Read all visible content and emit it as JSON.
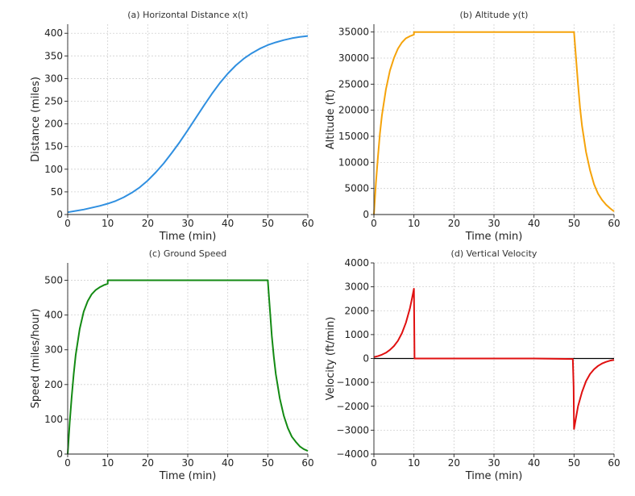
{
  "figure": {
    "background": "#ffffff"
  },
  "chart_data": [
    {
      "id": "a",
      "type": "line",
      "title": "(a) Horizontal Distance x(t)",
      "xlabel": "Time (min)",
      "ylabel": "Distance (miles)",
      "xlim": [
        0,
        60
      ],
      "ylim": [
        0,
        420
      ],
      "xticks": [
        0,
        10,
        20,
        30,
        40,
        50,
        60
      ],
      "yticks": [
        0,
        50,
        100,
        150,
        200,
        250,
        300,
        350,
        400
      ],
      "grid": true,
      "zero_line": false,
      "series": [
        {
          "color": "#2f8fe0",
          "x": [
            0,
            2,
            4,
            6,
            8,
            10,
            12,
            14,
            16,
            18,
            20,
            22,
            24,
            26,
            28,
            30,
            32,
            34,
            36,
            38,
            40,
            42,
            44,
            46,
            48,
            50,
            52,
            54,
            56,
            58,
            60
          ],
          "y": [
            5,
            8,
            11,
            15,
            19,
            24,
            30,
            38,
            48,
            60,
            75,
            93,
            113,
            136,
            160,
            186,
            213,
            240,
            266,
            290,
            311,
            329,
            344,
            356,
            366,
            374,
            380,
            385,
            389,
            392,
            394
          ]
        }
      ]
    },
    {
      "id": "b",
      "type": "line",
      "title": "(b) Altitude y(t)",
      "xlabel": "Time (min)",
      "ylabel": "Altitude (ft)",
      "xlim": [
        0,
        60
      ],
      "ylim": [
        0,
        36500
      ],
      "xticks": [
        0,
        10,
        20,
        30,
        40,
        50,
        60
      ],
      "yticks": [
        0,
        5000,
        10000,
        15000,
        20000,
        25000,
        30000,
        35000
      ],
      "grid": true,
      "zero_line": false,
      "series": [
        {
          "color": "#f5a30a",
          "x": [
            0,
            0.5,
            1,
            1.5,
            2,
            3,
            4,
            5,
            6,
            7,
            8,
            9,
            10,
            10.01,
            20,
            30,
            40,
            49.99,
            50,
            50.5,
            51,
            51.5,
            52,
            53,
            54,
            55,
            56,
            57,
            58,
            59,
            60
          ],
          "y": [
            0,
            6000,
            11000,
            15500,
            19000,
            24000,
            27600,
            30000,
            31800,
            33000,
            33800,
            34200,
            34500,
            35000,
            35000,
            35000,
            35000,
            35000,
            35000,
            30000,
            25000,
            20500,
            17000,
            12000,
            8500,
            5800,
            4000,
            2800,
            1900,
            1200,
            600
          ]
        }
      ]
    },
    {
      "id": "c",
      "type": "line",
      "title": "(c) Ground Speed",
      "xlabel": "Time (min)",
      "ylabel": "Speed (miles/hour)",
      "xlim": [
        0,
        60
      ],
      "ylim": [
        0,
        550
      ],
      "xticks": [
        0,
        10,
        20,
        30,
        40,
        50,
        60
      ],
      "yticks": [
        0,
        100,
        200,
        300,
        400,
        500
      ],
      "grid": true,
      "zero_line": false,
      "series": [
        {
          "color": "#138a13",
          "x": [
            0,
            0.5,
            1,
            1.5,
            2,
            3,
            4,
            5,
            6,
            7,
            8,
            9,
            10,
            10.01,
            20,
            30,
            40,
            49.99,
            50,
            50.5,
            51,
            51.5,
            52,
            53,
            54,
            55,
            56,
            57,
            58,
            59,
            60
          ],
          "y": [
            0,
            90,
            165,
            230,
            285,
            360,
            410,
            440,
            460,
            472,
            480,
            486,
            490,
            500,
            500,
            500,
            500,
            500,
            500,
            420,
            340,
            280,
            230,
            160,
            110,
            75,
            50,
            35,
            22,
            14,
            9
          ]
        }
      ]
    },
    {
      "id": "d",
      "type": "line",
      "title": "(d) Vertical Velocity",
      "xlabel": "Time (min)",
      "ylabel": "Velocity (ft/min)",
      "xlim": [
        0,
        60
      ],
      "ylim": [
        -4000,
        4000
      ],
      "xticks": [
        0,
        10,
        20,
        30,
        40,
        50,
        60
      ],
      "yticks": [
        -4000,
        -3000,
        -2000,
        -1000,
        0,
        1000,
        2000,
        3000,
        4000
      ],
      "ytick_labels": [
        "−4000",
        "−3000",
        "−2000",
        "−1000",
        "0",
        "1000",
        "2000",
        "3000",
        "4000"
      ],
      "grid": true,
      "zero_line": true,
      "series": [
        {
          "color": "#e01010",
          "x": [
            0,
            1,
            2,
            3,
            4,
            5,
            6,
            7,
            8,
            9,
            9.5,
            10,
            10.15,
            20,
            30,
            40,
            49.7,
            49.9,
            50,
            51,
            52,
            53,
            54,
            55,
            56,
            57,
            58,
            59,
            60
          ],
          "y": [
            60,
            100,
            160,
            240,
            360,
            520,
            740,
            1060,
            1500,
            2100,
            2500,
            2920,
            0,
            0,
            0,
            0,
            -20,
            -1200,
            -2950,
            -2000,
            -1400,
            -950,
            -650,
            -450,
            -310,
            -210,
            -140,
            -90,
            -60
          ]
        }
      ]
    }
  ]
}
